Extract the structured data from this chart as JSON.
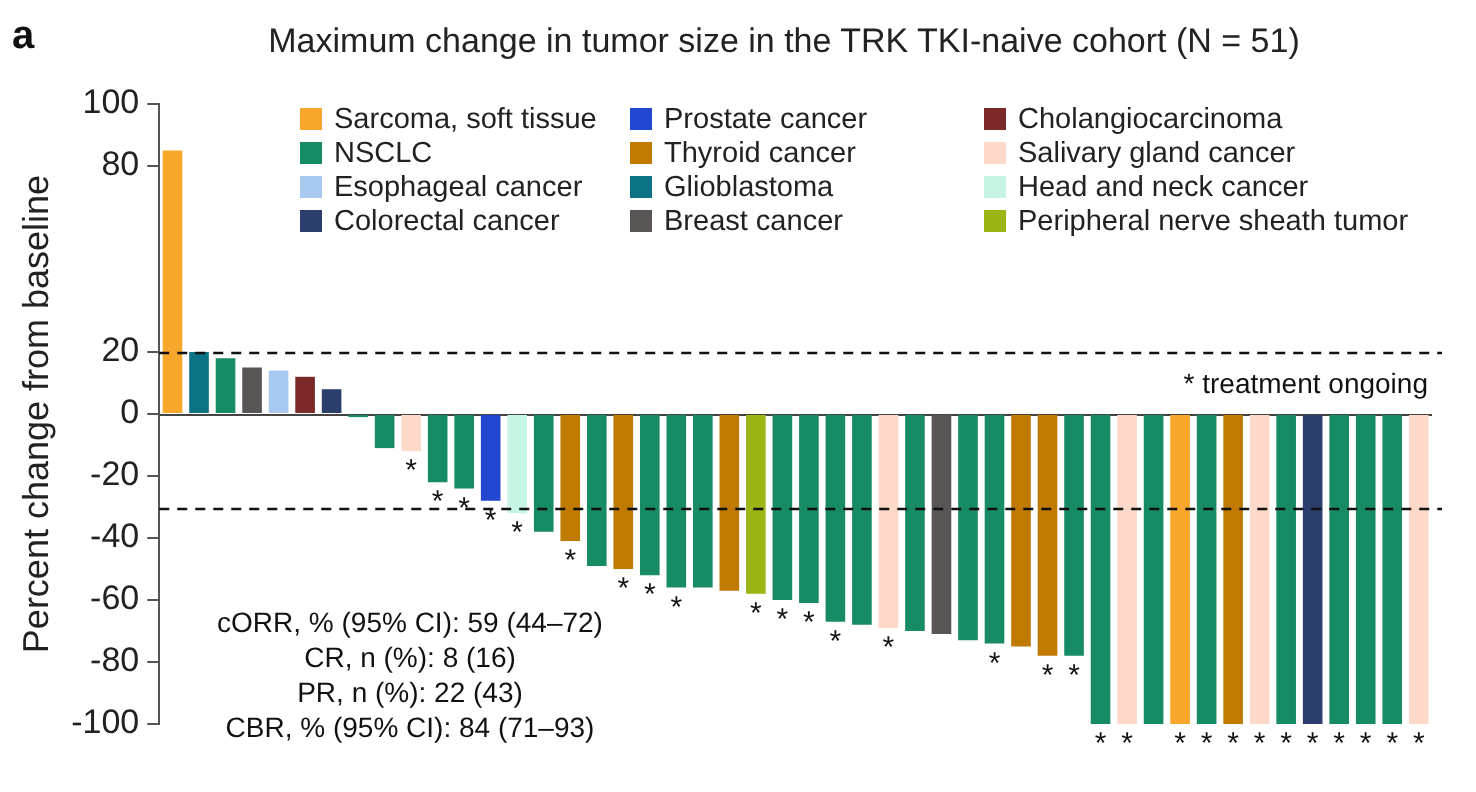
{
  "chart_data": {
    "type": "bar",
    "title": "Maximum change in tumor size in the TRK TKI-naive cohort (N = 51)",
    "ylabel": "Percent change from baseline",
    "categories": [
      null,
      null,
      null,
      null,
      null,
      null,
      null,
      null,
      null,
      null,
      null,
      null,
      null,
      null,
      null,
      null,
      null,
      null,
      null,
      null,
      null,
      null,
      null,
      null,
      null,
      null,
      null,
      null,
      null,
      null,
      null,
      null,
      null,
      null,
      null,
      null,
      null,
      null,
      null,
      null,
      null,
      null,
      null,
      null,
      null,
      null,
      null,
      null
    ],
    "series": [
      {
        "name": "Sarcoma, soft tissue",
        "color": "#f7a72c",
        "values": [
          85,
          null,
          null,
          null,
          null,
          null,
          null,
          null,
          null,
          null,
          null,
          null,
          null,
          null,
          null,
          null,
          null,
          null,
          null,
          null,
          null,
          null,
          null,
          null,
          null,
          null,
          null,
          null,
          null,
          null,
          null,
          null,
          null,
          null,
          null,
          null,
          null,
          null,
          -100,
          null,
          null,
          null,
          null,
          null,
          null,
          null,
          null,
          null
        ],
        "value_labels": [
          null,
          null,
          null,
          null,
          null,
          null,
          null,
          null,
          null,
          null,
          null,
          null,
          null,
          null,
          null,
          null,
          null,
          null,
          null,
          null,
          null,
          null,
          null,
          null,
          null,
          null,
          null,
          null,
          null,
          null,
          null,
          null,
          null,
          null,
          null,
          null,
          null,
          null,
          "*",
          null,
          null,
          null,
          null,
          null,
          null,
          null,
          null,
          null
        ]
      },
      {
        "name": "NSCLC",
        "color": "#178a66",
        "values": [
          null,
          null,
          18,
          null,
          null,
          null,
          null,
          -1,
          -11,
          null,
          -22,
          -24,
          null,
          null,
          -38,
          null,
          -49,
          null,
          -52,
          -56,
          -56,
          null,
          null,
          -60,
          -61,
          -67,
          -68,
          null,
          -70,
          null,
          -73,
          -74,
          null,
          null,
          -78,
          -100,
          null,
          -100,
          null,
          -100,
          null,
          null,
          -100,
          null,
          -100,
          -100,
          -100,
          null
        ],
        "value_labels": [
          null,
          null,
          null,
          null,
          null,
          null,
          null,
          null,
          null,
          null,
          "*",
          "*",
          null,
          null,
          null,
          null,
          null,
          null,
          "*",
          "*",
          null,
          null,
          null,
          "*",
          "*",
          "*",
          null,
          null,
          null,
          null,
          null,
          "*",
          null,
          null,
          "*",
          "*",
          null,
          null,
          null,
          "*",
          null,
          null,
          "*",
          null,
          "*",
          "*",
          "*",
          null
        ]
      },
      {
        "name": "Esophageal cancer",
        "color": "#a9c8f0",
        "values": [
          null,
          null,
          null,
          null,
          14,
          null,
          null,
          null,
          null,
          null,
          null,
          null,
          null,
          null,
          null,
          null,
          null,
          null,
          null,
          null,
          null,
          null,
          null,
          null,
          null,
          null,
          null,
          null,
          null,
          null,
          null,
          null,
          null,
          null,
          null,
          null,
          null,
          null,
          null,
          null,
          null,
          null,
          null,
          null,
          null,
          null,
          null,
          null
        ],
        "value_labels": [
          null,
          null,
          null,
          null,
          null,
          null,
          null,
          null,
          null,
          null,
          null,
          null,
          null,
          null,
          null,
          null,
          null,
          null,
          null,
          null,
          null,
          null,
          null,
          null,
          null,
          null,
          null,
          null,
          null,
          null,
          null,
          null,
          null,
          null,
          null,
          null,
          null,
          null,
          null,
          null,
          null,
          null,
          null,
          null,
          null,
          null,
          null,
          null
        ]
      },
      {
        "name": "Colorectal cancer",
        "color": "#2c3e6b",
        "values": [
          null,
          null,
          null,
          null,
          null,
          null,
          8,
          null,
          null,
          null,
          null,
          null,
          null,
          null,
          null,
          null,
          null,
          null,
          null,
          null,
          null,
          null,
          null,
          null,
          null,
          null,
          null,
          null,
          null,
          null,
          null,
          null,
          null,
          null,
          null,
          null,
          null,
          null,
          null,
          null,
          null,
          null,
          null,
          -100,
          null,
          null,
          null,
          null
        ],
        "value_labels": [
          null,
          null,
          null,
          null,
          null,
          null,
          null,
          null,
          null,
          null,
          null,
          null,
          null,
          null,
          null,
          null,
          null,
          null,
          null,
          null,
          null,
          null,
          null,
          null,
          null,
          null,
          null,
          null,
          null,
          null,
          null,
          null,
          null,
          null,
          null,
          null,
          null,
          null,
          null,
          null,
          null,
          null,
          null,
          "*",
          null,
          null,
          null,
          null
        ]
      },
      {
        "name": "Prostate cancer",
        "color": "#2146d0",
        "values": [
          null,
          null,
          null,
          null,
          null,
          null,
          null,
          null,
          null,
          null,
          null,
          null,
          -28,
          null,
          null,
          null,
          null,
          null,
          null,
          null,
          null,
          null,
          null,
          null,
          null,
          null,
          null,
          null,
          null,
          null,
          null,
          null,
          null,
          null,
          null,
          null,
          null,
          null,
          null,
          null,
          null,
          null,
          null,
          null,
          null,
          null,
          null,
          null
        ],
        "value_labels": [
          null,
          null,
          null,
          null,
          null,
          null,
          null,
          null,
          null,
          null,
          null,
          null,
          "*",
          null,
          null,
          null,
          null,
          null,
          null,
          null,
          null,
          null,
          null,
          null,
          null,
          null,
          null,
          null,
          null,
          null,
          null,
          null,
          null,
          null,
          null,
          null,
          null,
          null,
          null,
          null,
          null,
          null,
          null,
          null,
          null,
          null,
          null,
          null
        ]
      },
      {
        "name": "Thyroid cancer",
        "color": "#c07a00",
        "values": [
          null,
          null,
          null,
          null,
          null,
          null,
          null,
          null,
          null,
          null,
          null,
          null,
          null,
          null,
          null,
          -41,
          null,
          -50,
          null,
          null,
          null,
          -57,
          null,
          null,
          null,
          null,
          null,
          null,
          null,
          null,
          null,
          null,
          -75,
          -78,
          null,
          null,
          null,
          null,
          null,
          null,
          -100,
          null,
          null,
          null,
          null,
          null,
          null,
          null
        ],
        "value_labels": [
          null,
          null,
          null,
          null,
          null,
          null,
          null,
          null,
          null,
          null,
          null,
          null,
          null,
          null,
          null,
          "*",
          null,
          "*",
          null,
          null,
          null,
          null,
          null,
          null,
          null,
          null,
          null,
          null,
          null,
          null,
          null,
          null,
          null,
          "*",
          null,
          null,
          null,
          null,
          null,
          null,
          "*",
          null,
          null,
          null,
          null,
          null,
          null,
          null
        ]
      },
      {
        "name": "Glioblastoma",
        "color": "#0c7385",
        "values": [
          null,
          20,
          null,
          null,
          null,
          null,
          null,
          null,
          null,
          null,
          null,
          null,
          null,
          null,
          null,
          null,
          null,
          null,
          null,
          null,
          null,
          null,
          null,
          null,
          null,
          null,
          null,
          null,
          null,
          null,
          null,
          null,
          null,
          null,
          null,
          null,
          null,
          null,
          null,
          null,
          null,
          null,
          null,
          null,
          null,
          null,
          null,
          null
        ],
        "value_labels": [
          null,
          null,
          null,
          null,
          null,
          null,
          null,
          null,
          null,
          null,
          null,
          null,
          null,
          null,
          null,
          null,
          null,
          null,
          null,
          null,
          null,
          null,
          null,
          null,
          null,
          null,
          null,
          null,
          null,
          null,
          null,
          null,
          null,
          null,
          null,
          null,
          null,
          null,
          null,
          null,
          null,
          null,
          null,
          null,
          null,
          null,
          null,
          null
        ]
      },
      {
        "name": "Breast cancer",
        "color": "#595555",
        "values": [
          null,
          null,
          null,
          15,
          null,
          null,
          null,
          null,
          null,
          null,
          null,
          null,
          null,
          null,
          null,
          null,
          null,
          null,
          null,
          null,
          null,
          null,
          null,
          null,
          null,
          null,
          null,
          null,
          null,
          -71,
          null,
          null,
          null,
          null,
          null,
          null,
          null,
          null,
          null,
          null,
          null,
          null,
          null,
          null,
          null,
          null,
          null,
          null
        ],
        "value_labels": [
          null,
          null,
          null,
          null,
          null,
          null,
          null,
          null,
          null,
          null,
          null,
          null,
          null,
          null,
          null,
          null,
          null,
          null,
          null,
          null,
          null,
          null,
          null,
          null,
          null,
          null,
          null,
          null,
          null,
          null,
          null,
          null,
          null,
          null,
          null,
          null,
          null,
          null,
          null,
          null,
          null,
          null,
          null,
          null,
          null,
          null,
          null,
          null
        ]
      },
      {
        "name": "Cholangiocarcinoma",
        "color": "#7b2929",
        "values": [
          null,
          null,
          null,
          null,
          null,
          12,
          null,
          null,
          null,
          null,
          null,
          null,
          null,
          null,
          null,
          null,
          null,
          null,
          null,
          null,
          null,
          null,
          null,
          null,
          null,
          null,
          null,
          null,
          null,
          null,
          null,
          null,
          null,
          null,
          null,
          null,
          null,
          null,
          null,
          null,
          null,
          null,
          null,
          null,
          null,
          null,
          null,
          null
        ],
        "value_labels": [
          null,
          null,
          null,
          null,
          null,
          null,
          null,
          null,
          null,
          null,
          null,
          null,
          null,
          null,
          null,
          null,
          null,
          null,
          null,
          null,
          null,
          null,
          null,
          null,
          null,
          null,
          null,
          null,
          null,
          null,
          null,
          null,
          null,
          null,
          null,
          null,
          null,
          null,
          null,
          null,
          null,
          null,
          null,
          null,
          null,
          null,
          null,
          null
        ]
      },
      {
        "name": "Salivary gland cancer",
        "color": "#fcd9c8",
        "values": [
          null,
          null,
          null,
          null,
          null,
          null,
          null,
          null,
          null,
          -12,
          null,
          null,
          null,
          null,
          null,
          null,
          null,
          null,
          null,
          null,
          null,
          null,
          null,
          null,
          null,
          null,
          null,
          -69,
          null,
          null,
          null,
          null,
          null,
          null,
          null,
          null,
          -100,
          null,
          null,
          null,
          null,
          -100,
          null,
          null,
          null,
          null,
          null,
          -100
        ],
        "value_labels": [
          null,
          null,
          null,
          null,
          null,
          null,
          null,
          null,
          null,
          "*",
          null,
          null,
          null,
          null,
          null,
          null,
          null,
          null,
          null,
          null,
          null,
          null,
          null,
          null,
          null,
          null,
          null,
          "*",
          null,
          null,
          null,
          null,
          null,
          null,
          null,
          null,
          "*",
          null,
          null,
          null,
          null,
          "*",
          null,
          null,
          null,
          null,
          null,
          "*"
        ]
      },
      {
        "name": "Head and neck cancer",
        "color": "#c7f5e3",
        "values": [
          null,
          null,
          null,
          null,
          null,
          null,
          null,
          null,
          null,
          null,
          null,
          null,
          null,
          -32,
          null,
          null,
          null,
          null,
          null,
          null,
          null,
          null,
          null,
          null,
          null,
          null,
          null,
          null,
          null,
          null,
          null,
          null,
          null,
          null,
          null,
          null,
          null,
          null,
          null,
          null,
          null,
          null,
          null,
          null,
          null,
          null,
          null,
          null
        ],
        "value_labels": [
          null,
          null,
          null,
          null,
          null,
          null,
          null,
          null,
          null,
          null,
          null,
          null,
          null,
          "*",
          null,
          null,
          null,
          null,
          null,
          null,
          null,
          null,
          null,
          null,
          null,
          null,
          null,
          null,
          null,
          null,
          null,
          null,
          null,
          null,
          null,
          null,
          null,
          null,
          null,
          null,
          null,
          null,
          null,
          null,
          null,
          null,
          null,
          null
        ]
      },
      {
        "name": "Peripheral nerve sheath tumor",
        "color": "#9ab514",
        "values": [
          null,
          null,
          null,
          null,
          null,
          null,
          null,
          null,
          null,
          null,
          null,
          null,
          null,
          null,
          null,
          null,
          null,
          null,
          null,
          null,
          null,
          null,
          -58,
          null,
          null,
          null,
          null,
          null,
          null,
          null,
          null,
          null,
          null,
          null,
          null,
          null,
          null,
          null,
          null,
          null,
          null,
          null,
          null,
          null,
          null,
          null,
          null,
          null
        ],
        "value_labels": [
          null,
          null,
          null,
          null,
          null,
          null,
          null,
          null,
          null,
          null,
          null,
          null,
          null,
          null,
          null,
          null,
          null,
          null,
          null,
          null,
          null,
          null,
          "*",
          null,
          null,
          null,
          null,
          null,
          null,
          null,
          null,
          null,
          null,
          null,
          null,
          null,
          null,
          null,
          null,
          null,
          null,
          null,
          null,
          null,
          null,
          null,
          null,
          null
        ]
      }
    ],
    "ylim": [
      -100,
      100
    ],
    "yticks": [
      -100,
      -80,
      -60,
      -40,
      -20,
      0,
      20,
      80,
      100
    ],
    "ref_lines": [
      {
        "axis": "y",
        "value": 20,
        "line_style": "dashed"
      },
      {
        "axis": "y",
        "value": -30,
        "line_style": "dashed"
      }
    ],
    "annotations": [
      "a",
      "* treatment ongoing",
      "cORR, % (95% CI): 59 (44–72)",
      "CR, n (%): 8 (16)",
      "PR, n (%): 22 (43)",
      "CBR, % (95% CI): 84 (71–93)"
    ],
    "legend": "top",
    "grid": false
  }
}
